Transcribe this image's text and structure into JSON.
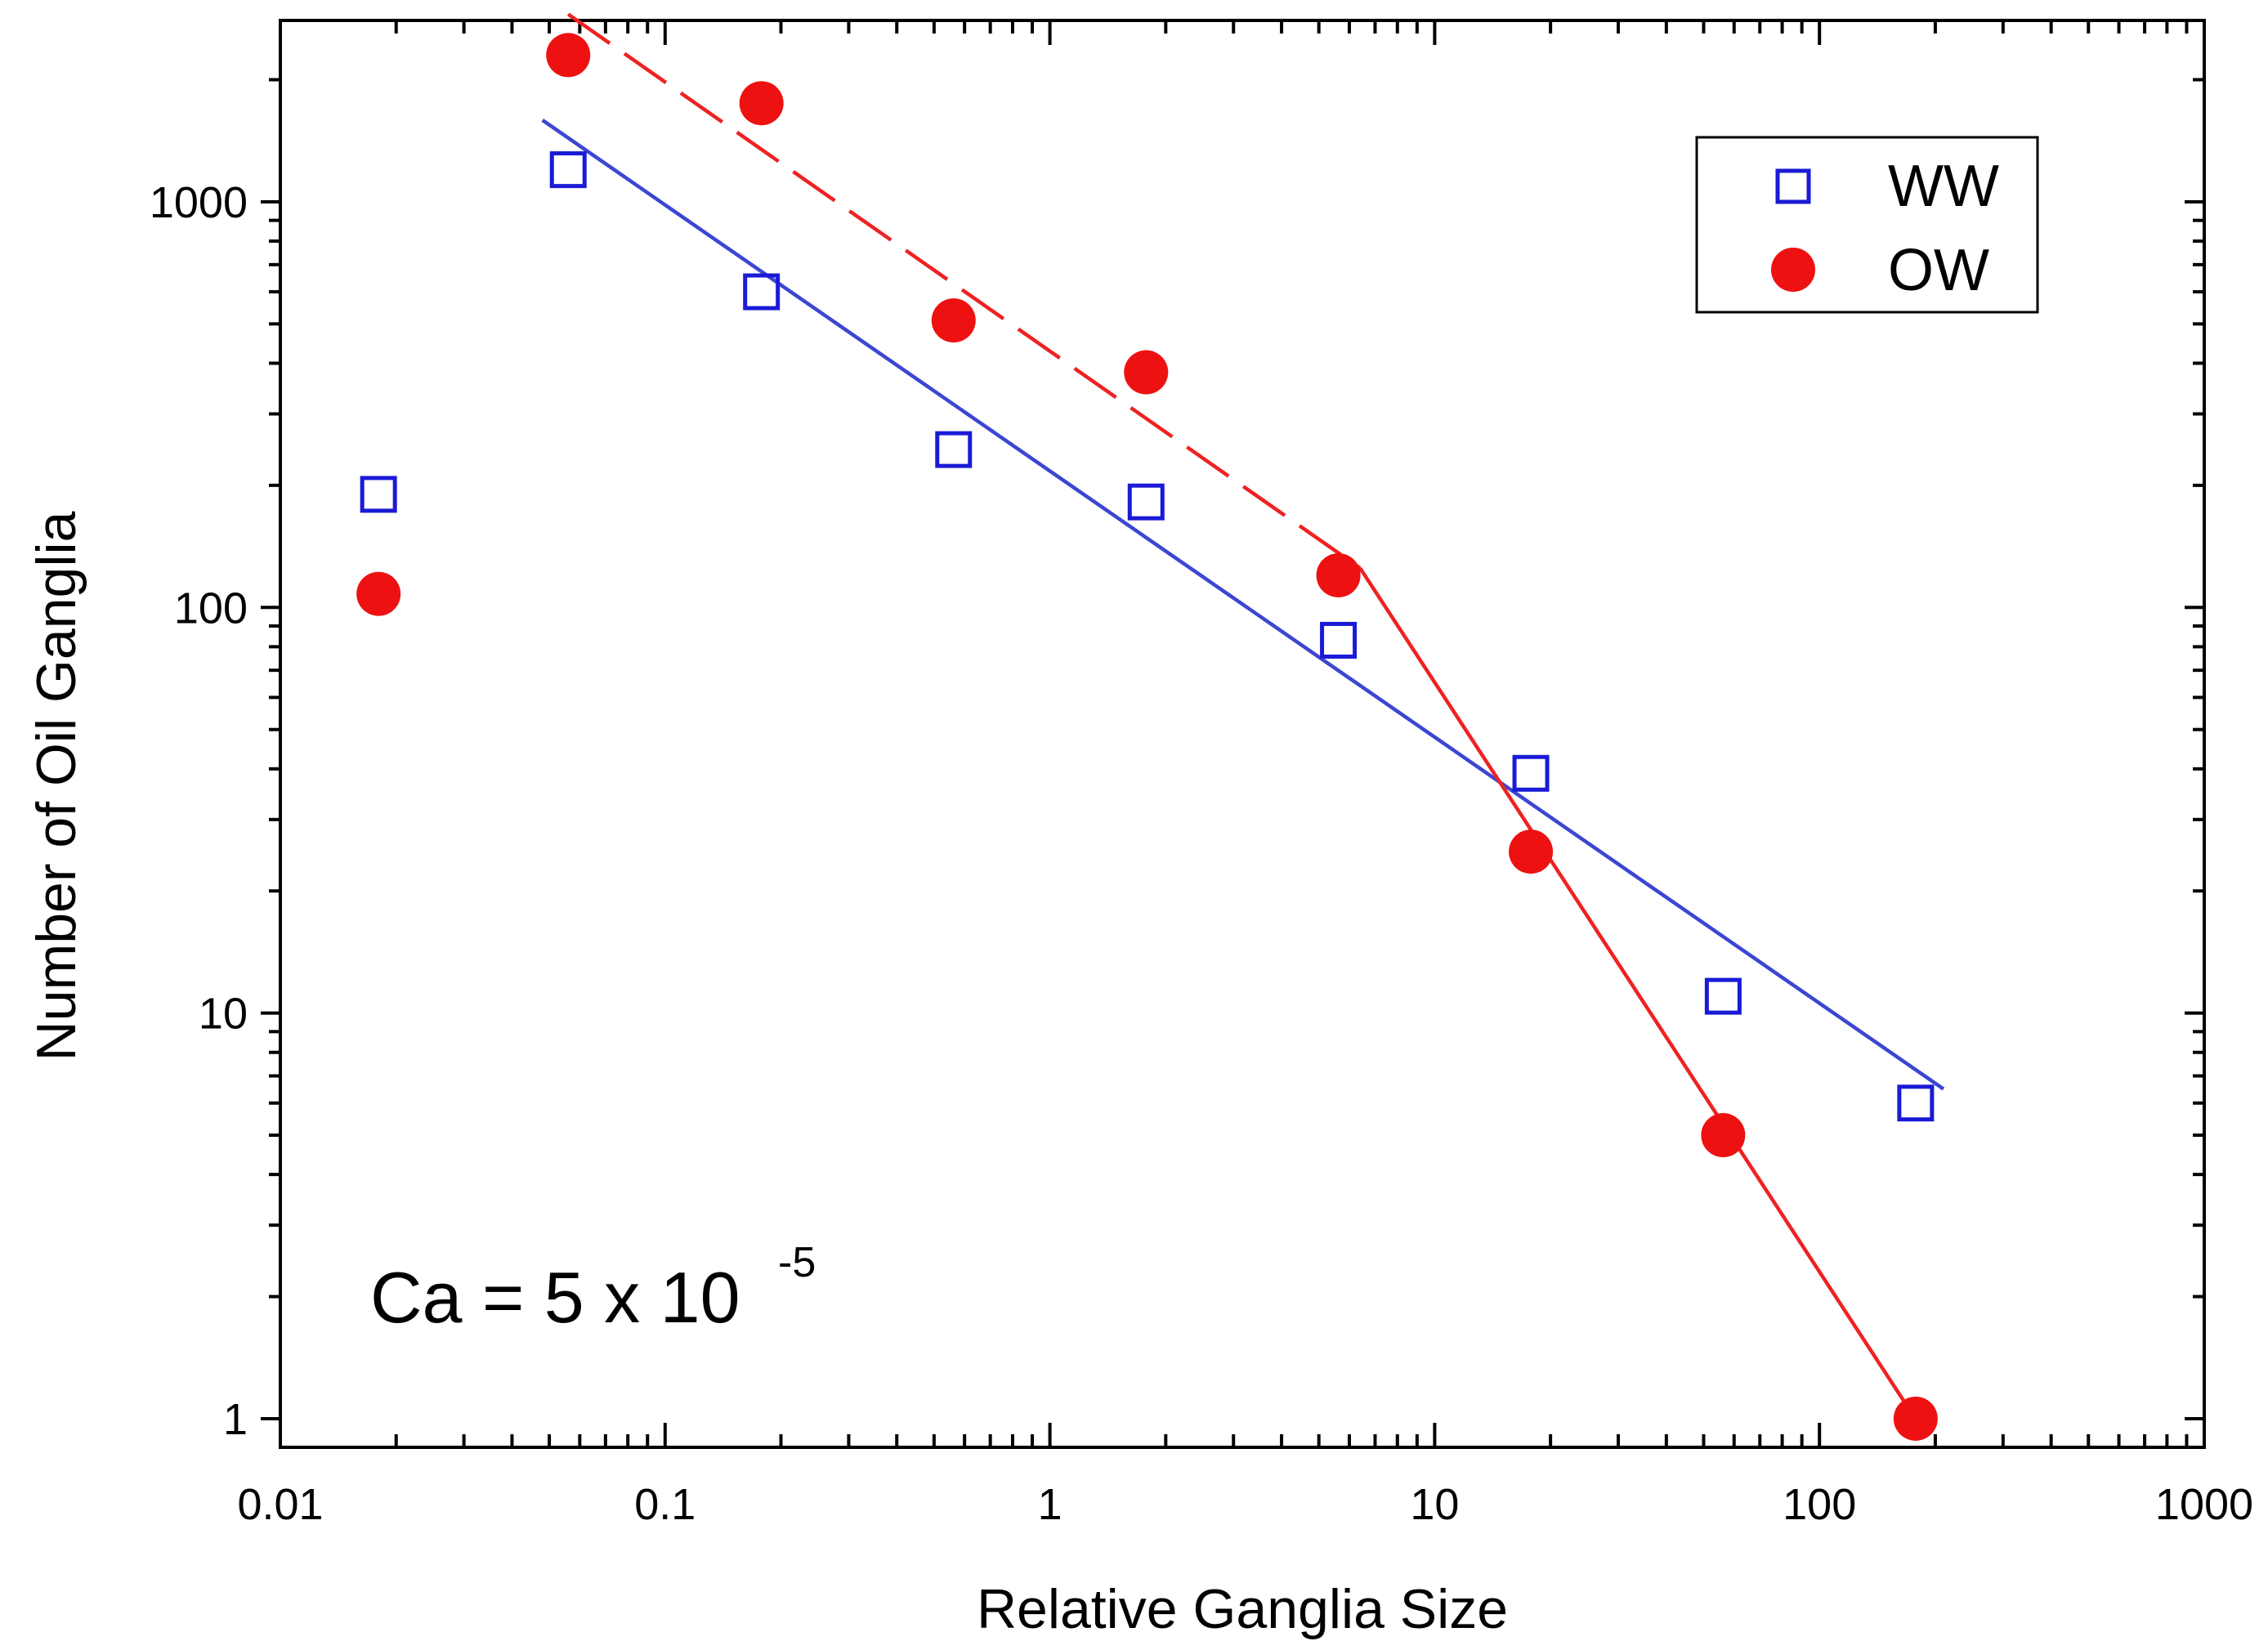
{
  "chart_data": {
    "type": "scatter",
    "xlabel": "Relative Ganglia Size",
    "ylabel": "Number of Oil Ganglia",
    "xscale": "log",
    "yscale": "log",
    "xlim": [
      0.01,
      1000
    ],
    "ylim": [
      0.85,
      2800
    ],
    "x_ticks": [
      0.01,
      0.1,
      1,
      10,
      100,
      1000
    ],
    "x_tick_labels": [
      "0.01",
      "0.1",
      "1",
      "10",
      "100",
      "1000"
    ],
    "y_ticks": [
      1,
      10,
      100,
      1000
    ],
    "y_tick_labels": [
      "1",
      "10",
      "100",
      "1000"
    ],
    "grid": false,
    "legend_position": "top-right",
    "series": [
      {
        "name": "WW",
        "marker": "open-square",
        "color": "#1a1ad6",
        "x": [
          0.018,
          0.056,
          0.178,
          0.562,
          1.778,
          5.62,
          17.78,
          56.2,
          177.8
        ],
        "y": [
          190,
          1200,
          600,
          245,
          182,
          83,
          39,
          11,
          6
        ]
      },
      {
        "name": "OW",
        "marker": "filled-circle",
        "color": "#ee1111",
        "x": [
          0.018,
          0.056,
          0.178,
          0.562,
          1.778,
          5.62,
          17.78,
          56.2,
          177.8
        ],
        "y": [
          108,
          2300,
          1750,
          510,
          380,
          120,
          25,
          5,
          1
        ]
      }
    ],
    "fit_lines": [
      {
        "series": "WW",
        "style": "solid",
        "color": "#3c46d2",
        "x": [
          0.048,
          210
        ],
        "y": [
          1590,
          6.5
        ]
      },
      {
        "series": "OW",
        "style": "dashed",
        "color": "#ee2222",
        "x": [
          0.056,
          6.4
        ],
        "y": [
          2900,
          125
        ]
      },
      {
        "series": "OW",
        "style": "solid",
        "color": "#ee2222",
        "x": [
          6.4,
          180
        ],
        "y": [
          125,
          0.98
        ]
      }
    ],
    "annotation": {
      "text": "Ca = 5 x 10",
      "superscript": "-5"
    }
  }
}
